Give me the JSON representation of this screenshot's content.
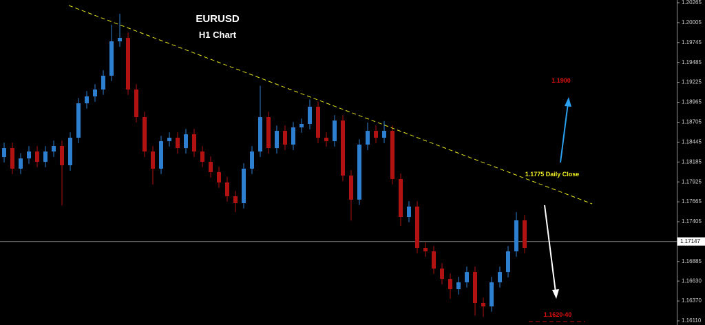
{
  "chart_data": {
    "type": "candlestick",
    "title": "EURUSD",
    "subtitle": "H1 Chart",
    "annotations": [
      "1.1900",
      "1.1775 Daily Close",
      "1.1620-40"
    ],
    "up_color": "#2f7fd0",
    "down_color": "#b31212",
    "ylim": [
      1.16056,
      1.20301
    ],
    "yticks": [
      1.20265,
      1.20005,
      1.19745,
      1.19485,
      1.19225,
      1.18965,
      1.18705,
      1.18445,
      1.18185,
      1.17925,
      1.17665,
      1.17405,
      1.16885,
      {
        "value": 1.1663,
        "label": "1.16630"
      },
      {
        "value": 1.1637,
        "label": "1.16370"
      },
      {
        "value": 1.1611,
        "label": "1.16110"
      }
    ],
    "current_price": 1.17147,
    "open": [
      1.1825,
      1.18367,
      1.18098,
      1.18232,
      1.18322,
      1.18187,
      1.18322,
      1.18394,
      1.18142,
      1.18502,
      1.18952,
      1.19042,
      1.19132,
      1.19312,
      1.19761,
      1.19806,
      1.19132,
      1.18772,
      1.18322,
      1.18098,
      1.18457,
      1.18502,
      1.18367,
      1.18547,
      1.18322,
      1.18187,
      1.18053,
      1.17918,
      1.17738,
      1.17648,
      1.18098,
      1.18322,
      1.18772,
      1.18367,
      1.18592,
      1.18412,
      1.18637,
      1.18682,
      1.18907,
      1.18502,
      1.18457,
      1.18727,
      1.18008,
      1.17693,
      1.18412,
      1.18592,
      1.18502,
      1.18592,
      1.17963,
      1.17468,
      1.17603,
      1.17063,
      1.17018,
      1.16793,
      1.16658,
      1.16524,
      1.16614,
      1.16748,
      1.16344,
      1.16299,
      1.16614,
      1.16748,
      1.17018,
      1.17423
    ],
    "high": [
      1.18437,
      1.18437,
      1.18302,
      1.18392,
      1.18392,
      1.18392,
      1.18464,
      1.18464,
      1.18572,
      1.19022,
      1.19112,
      1.19202,
      1.19382,
      1.1998,
      1.2012,
      1.19876,
      1.19202,
      1.18842,
      1.18392,
      1.18527,
      1.18572,
      1.18572,
      1.18617,
      1.18617,
      1.18392,
      1.18257,
      1.18123,
      1.17988,
      1.17808,
      1.18168,
      1.18392,
      1.1918,
      1.18842,
      1.18662,
      1.18662,
      1.18707,
      1.18752,
      1.19,
      1.18977,
      1.18572,
      1.18797,
      1.18797,
      1.18078,
      1.18482,
      1.187,
      1.18662,
      1.1872,
      1.18662,
      1.18033,
      1.17673,
      1.17673,
      1.17133,
      1.17088,
      1.16863,
      1.16728,
      1.16684,
      1.16818,
      1.16818,
      1.16414,
      1.16684,
      1.16818,
      1.17088,
      1.1753,
      1.17493
    ],
    "low": [
      1.1818,
      1.18028,
      1.18028,
      1.18162,
      1.18117,
      1.18117,
      1.18252,
      1.1762,
      1.18072,
      1.18432,
      1.18882,
      1.18972,
      1.19062,
      1.19242,
      1.19691,
      1.19062,
      1.18702,
      1.18252,
      1.1789,
      1.18028,
      1.18387,
      1.18297,
      1.18297,
      1.18252,
      1.18117,
      1.17983,
      1.17848,
      1.17668,
      1.1753,
      1.17578,
      1.18028,
      1.18252,
      1.18297,
      1.18297,
      1.18342,
      1.18342,
      1.18567,
      1.18612,
      1.18432,
      1.18387,
      1.18387,
      1.17938,
      1.1742,
      1.17623,
      1.18342,
      1.18432,
      1.18432,
      1.17893,
      1.1735,
      1.17398,
      1.16993,
      1.16948,
      1.16723,
      1.16588,
      1.164,
      1.16454,
      1.16544,
      1.1618,
      1.1616,
      1.16229,
      1.16544,
      1.16678,
      1.16948,
      1.16993
    ],
    "close": [
      1.18367,
      1.18098,
      1.18232,
      1.18322,
      1.18187,
      1.18322,
      1.18394,
      1.18142,
      1.18502,
      1.18952,
      1.19042,
      1.19132,
      1.19312,
      1.19761,
      1.19806,
      1.19132,
      1.18772,
      1.18322,
      1.18098,
      1.18457,
      1.18502,
      1.18367,
      1.18547,
      1.18322,
      1.18187,
      1.18053,
      1.17918,
      1.17738,
      1.17648,
      1.18098,
      1.18322,
      1.18772,
      1.18367,
      1.18592,
      1.18412,
      1.18637,
      1.18682,
      1.18907,
      1.18502,
      1.18457,
      1.18727,
      1.18008,
      1.17693,
      1.18412,
      1.18592,
      1.18502,
      1.18592,
      1.17963,
      1.17468,
      1.17603,
      1.17063,
      1.17018,
      1.16793,
      1.16658,
      1.16524,
      1.16614,
      1.16748,
      1.16344,
      1.16299,
      1.16614,
      1.16748,
      1.17018,
      1.17423,
      1.17063
    ]
  }
}
